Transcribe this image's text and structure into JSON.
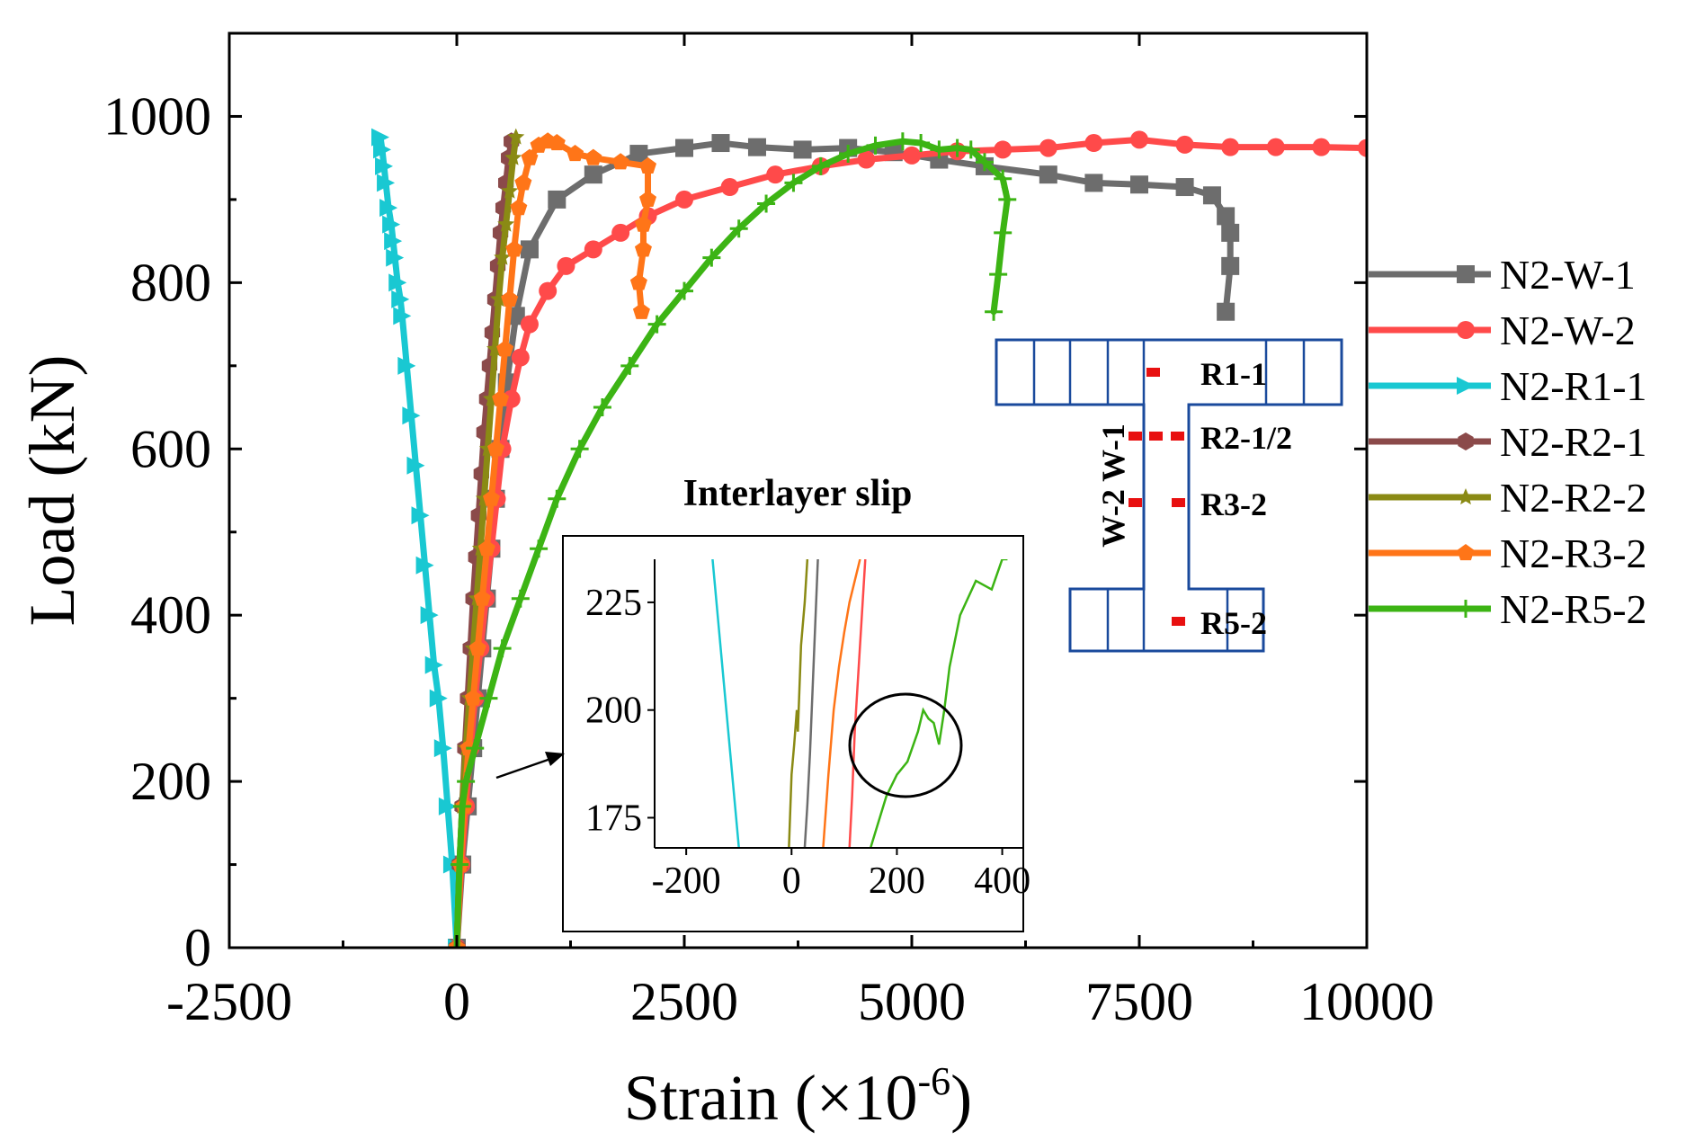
{
  "chart_data": {
    "type": "line",
    "xlabel": "Strain (×10",
    "xlabel_sup": "-6",
    "xlabel_end": ")",
    "ylabel": "Load (kN)",
    "xlim": [
      -2500,
      10000
    ],
    "ylim": [
      0,
      1100
    ],
    "xticks": [
      -2500,
      0,
      2500,
      5000,
      7500,
      10000
    ],
    "yticks": [
      0,
      200,
      400,
      600,
      800,
      1000
    ],
    "series": [
      {
        "name": "N2-W-1",
        "color": "#6d6d6d",
        "marker": "square",
        "x": [
          0,
          60,
          120,
          180,
          230,
          280,
          330,
          380,
          430,
          480,
          550,
          650,
          800,
          1100,
          1500,
          2000,
          2500,
          2900,
          3300,
          3800,
          4300,
          4800,
          5300,
          5800,
          6500,
          7000,
          7500,
          8000,
          8300,
          8450,
          8500,
          8500,
          8450
        ],
        "y": [
          0,
          100,
          170,
          240,
          300,
          360,
          420,
          480,
          540,
          600,
          680,
          760,
          840,
          900,
          930,
          955,
          962,
          968,
          963,
          960,
          962,
          957,
          948,
          940,
          930,
          920,
          918,
          915,
          905,
          880,
          860,
          820,
          765
        ]
      },
      {
        "name": "N2-W-2",
        "color": "#ff4a4a",
        "marker": "circle",
        "x": [
          0,
          50,
          100,
          150,
          200,
          260,
          320,
          380,
          440,
          500,
          600,
          700,
          800,
          1000,
          1200,
          1500,
          1800,
          2100,
          2500,
          3000,
          3500,
          4000,
          4500,
          5000,
          5500,
          6000,
          6500,
          7000,
          7500,
          8000,
          8500,
          9000,
          9500,
          10000
        ],
        "y": [
          0,
          100,
          170,
          240,
          300,
          360,
          420,
          480,
          540,
          600,
          660,
          710,
          750,
          790,
          820,
          840,
          860,
          880,
          900,
          915,
          930,
          940,
          948,
          953,
          958,
          960,
          962,
          968,
          972,
          966,
          963,
          963,
          963,
          962
        ]
      },
      {
        "name": "N2-R1-1",
        "color": "#19c8d2",
        "marker": "triangle-right",
        "x": [
          0,
          -50,
          -100,
          -150,
          -200,
          -250,
          -300,
          -350,
          -400,
          -450,
          -500,
          -550,
          -600,
          -620,
          -650,
          -680,
          -700,
          -720,
          -750,
          -780,
          -800,
          -820,
          -840
        ],
        "y": [
          0,
          100,
          170,
          240,
          300,
          340,
          400,
          460,
          520,
          580,
          640,
          700,
          760,
          780,
          800,
          830,
          850,
          870,
          890,
          920,
          940,
          960,
          975
        ]
      },
      {
        "name": "N2-R2-1",
        "color": "#8b4a4a",
        "marker": "hexagon",
        "x": [
          0,
          30,
          60,
          90,
          120,
          150,
          180,
          210,
          240,
          270,
          300,
          330,
          360,
          390,
          420,
          450,
          480,
          510,
          540,
          570,
          600
        ],
        "y": [
          0,
          100,
          170,
          240,
          300,
          360,
          420,
          470,
          520,
          570,
          620,
          660,
          700,
          740,
          780,
          820,
          860,
          890,
          920,
          950,
          970
        ]
      },
      {
        "name": "N2-R2-2",
        "color": "#8a8a14",
        "marker": "star",
        "x": [
          0,
          30,
          60,
          100,
          140,
          180,
          220,
          260,
          300,
          340,
          380,
          420,
          460,
          500,
          540,
          580,
          620,
          650
        ],
        "y": [
          0,
          100,
          170,
          240,
          300,
          360,
          420,
          480,
          540,
          600,
          660,
          720,
          780,
          830,
          870,
          910,
          950,
          975
        ]
      },
      {
        "name": "N2-R3-2",
        "color": "#ff7518",
        "marker": "pentagon",
        "x": [
          0,
          40,
          80,
          130,
          180,
          230,
          280,
          330,
          380,
          430,
          480,
          530,
          580,
          630,
          680,
          730,
          800,
          900,
          1000,
          1100,
          1300,
          1500,
          1800,
          2100,
          2100,
          2050,
          2050,
          2000,
          2030
        ],
        "y": [
          0,
          100,
          170,
          240,
          300,
          360,
          420,
          480,
          540,
          600,
          660,
          720,
          780,
          840,
          890,
          920,
          950,
          965,
          970,
          968,
          955,
          950,
          945,
          940,
          900,
          870,
          840,
          800,
          765
        ]
      },
      {
        "name": "N2-R5-2",
        "color": "#3cb414",
        "marker": "plus",
        "x": [
          0,
          30,
          60,
          100,
          200,
          350,
          500,
          700,
          900,
          1100,
          1350,
          1600,
          1900,
          2200,
          2500,
          2800,
          3100,
          3400,
          3700,
          4000,
          4300,
          4600,
          4900,
          5100,
          5300,
          5500,
          5650,
          5800,
          6000,
          6050,
          6000,
          5950,
          5900
        ],
        "y": [
          0,
          100,
          170,
          200,
          240,
          300,
          360,
          420,
          480,
          540,
          600,
          650,
          700,
          750,
          790,
          830,
          865,
          895,
          920,
          940,
          955,
          965,
          970,
          968,
          960,
          962,
          960,
          945,
          925,
          900,
          860,
          810,
          765
        ]
      }
    ],
    "legend_position": "right",
    "inset": {
      "title": "Interlayer slip",
      "xlim": [
        -260,
        440
      ],
      "ylim": [
        168,
        235
      ],
      "xticks": [
        -200,
        0,
        200,
        400
      ],
      "yticks": [
        175,
        200,
        225
      ],
      "series": [
        {
          "name": "N2-R1-1",
          "color": "#19c8d2",
          "x": [
            -150,
            -100
          ],
          "y": [
            235,
            168
          ]
        },
        {
          "name": "N2-R2-2",
          "color": "#8a8a14",
          "x": [
            -5,
            0,
            5,
            10,
            12,
            15,
            18,
            25,
            30
          ],
          "y": [
            168,
            185,
            192,
            200,
            195,
            205,
            215,
            225,
            235
          ]
        },
        {
          "name": "N2-W-1",
          "color": "#6d6d6d",
          "x": [
            25,
            30,
            35,
            40,
            45,
            50
          ],
          "y": [
            168,
            178,
            190,
            205,
            220,
            235
          ]
        },
        {
          "name": "N2-R3-2",
          "color": "#ff7518",
          "x": [
            60,
            70,
            80,
            90,
            100,
            110,
            120,
            130
          ],
          "y": [
            168,
            185,
            200,
            210,
            218,
            225,
            230,
            235
          ]
        },
        {
          "name": "N2-W-2",
          "color": "#ff4a4a",
          "x": [
            110,
            115,
            120,
            125,
            130,
            135,
            140
          ],
          "y": [
            168,
            180,
            195,
            205,
            215,
            225,
            235
          ]
        },
        {
          "name": "N2-R5-2",
          "color": "#3cb414",
          "x": [
            150,
            180,
            200,
            220,
            240,
            250,
            260,
            270,
            280,
            290,
            300,
            320,
            350,
            380,
            400,
            410
          ],
          "y": [
            168,
            180,
            185,
            188,
            195,
            200,
            198,
            197,
            192,
            200,
            210,
            222,
            230,
            228,
            235,
            235
          ]
        }
      ]
    }
  },
  "diagram": {
    "labels": [
      "R1-1",
      "R2-1/2",
      "R3-2",
      "R5-2"
    ],
    "wall_labels": [
      "W-2",
      "W-1"
    ]
  }
}
